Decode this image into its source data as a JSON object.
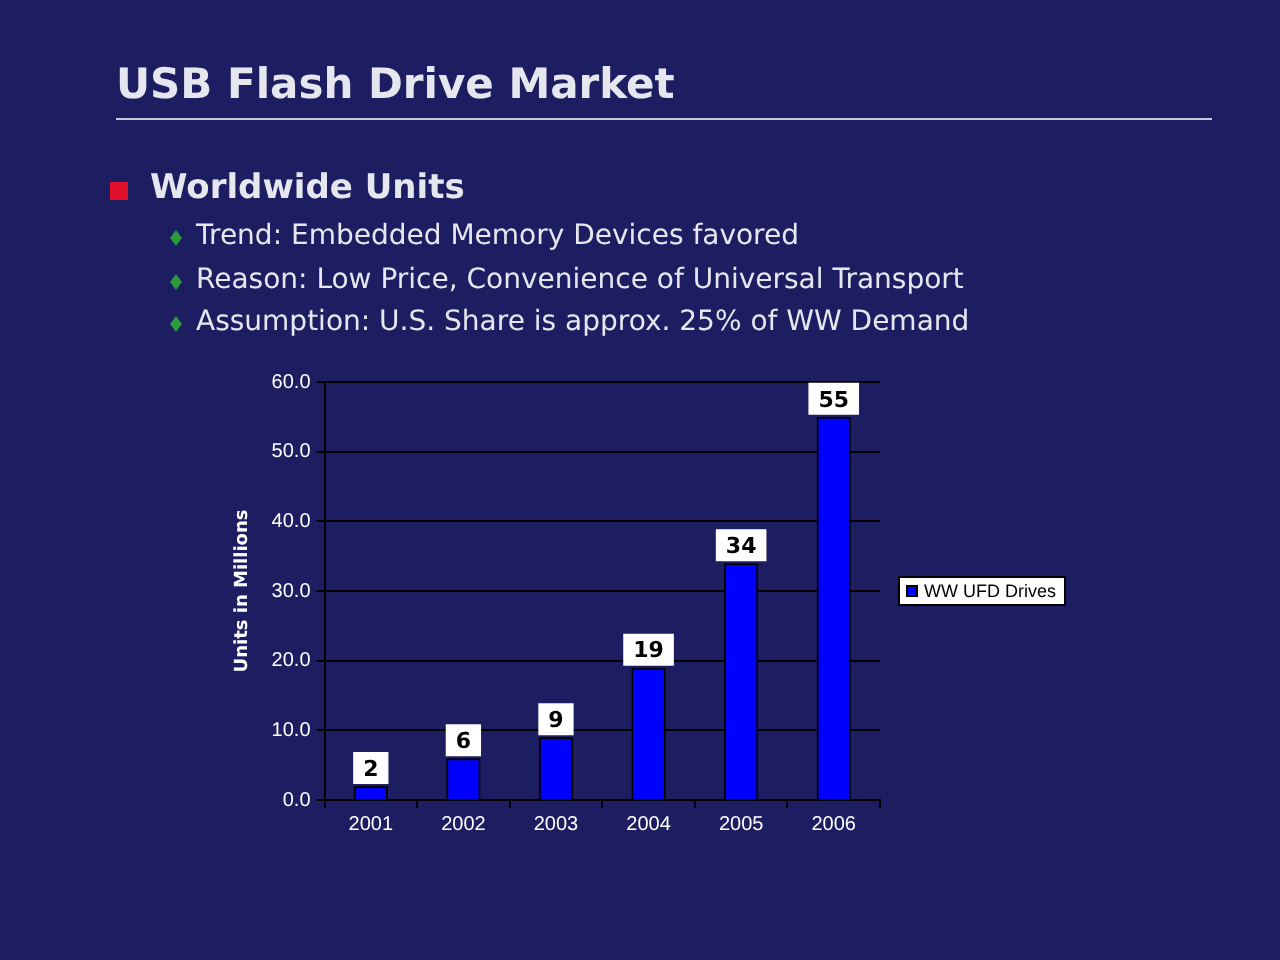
{
  "chart_data": {
    "type": "bar",
    "title": "USB Flash Drive Market",
    "subtitle": "Worldwide Units",
    "annotations": [
      "Trend: Embedded Memory Devices favored",
      "Reason: Low Price, Convenience of Universal Transport",
      "Assumption: U.S. Share is approx. 25% of WW Demand"
    ],
    "ylabel": "Units in Millions",
    "categories": [
      "2001",
      "2002",
      "2003",
      "2004",
      "2005",
      "2006"
    ],
    "series": [
      {
        "name": "WW UFD Drives",
        "color": "#0000ff",
        "values": [
          2,
          6,
          9,
          19,
          34,
          55
        ]
      }
    ],
    "ylim": [
      0,
      60
    ],
    "yticks": [
      {
        "value": 0,
        "label": "0.0"
      },
      {
        "value": 10,
        "label": "10.0"
      },
      {
        "value": 20,
        "label": "20.0"
      },
      {
        "value": 30,
        "label": "30.0"
      },
      {
        "value": 40,
        "label": "40.0"
      },
      {
        "value": 50,
        "label": "50.0"
      },
      {
        "value": 60,
        "label": "60.0"
      }
    ],
    "grid": "y",
    "legend": "right",
    "data_labels": true
  }
}
